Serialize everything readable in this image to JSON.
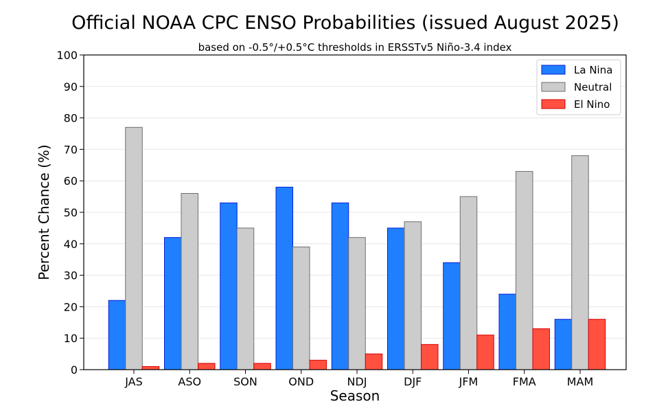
{
  "chart_data": {
    "type": "bar",
    "title": "Official NOAA CPC ENSO Probabilities (issued August 2025)",
    "subtitle": "based on -0.5°/+0.5°C thresholds in ERSSTv5 Niño-3.4 index",
    "xlabel": "Season",
    "ylabel": "Percent Chance (%)",
    "ylim": [
      0,
      100
    ],
    "yticks": [
      0,
      10,
      20,
      30,
      40,
      50,
      60,
      70,
      80,
      90,
      100
    ],
    "grid": true,
    "legend_position": "top-right",
    "categories": [
      "JAS",
      "ASO",
      "SON",
      "OND",
      "NDJ",
      "DJF",
      "JFM",
      "FMA",
      "MAM"
    ],
    "series": [
      {
        "name": "La Nina",
        "color": "#1f7fff",
        "edge": "#0a1fd6",
        "values": [
          22,
          42,
          53,
          58,
          53,
          45,
          34,
          24,
          16
        ]
      },
      {
        "name": "Neutral",
        "color": "#cccccc",
        "edge": "#6e6e6e",
        "values": [
          77,
          56,
          45,
          39,
          42,
          47,
          55,
          63,
          68
        ]
      },
      {
        "name": "El Nino",
        "color": "#ff5040",
        "edge": "#d40000",
        "values": [
          1,
          2,
          2,
          3,
          5,
          8,
          11,
          13,
          16
        ]
      }
    ]
  }
}
